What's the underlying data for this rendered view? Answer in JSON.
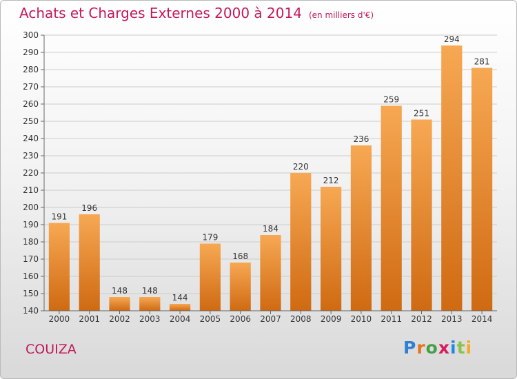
{
  "title": "Achats et Charges Externes 2000 à 2014",
  "unit": "(en milliers d'€)",
  "town": "COUIZA",
  "logo": {
    "letters": [
      "P",
      "r",
      "o",
      "x",
      "i",
      "t",
      "i"
    ],
    "colors": [
      "#2e7fd6",
      "#e8731a",
      "#43a047",
      "#d81b60",
      "#1e88e5",
      "#8bc34a",
      "#f9a825"
    ]
  },
  "colors": {
    "bar_top": "#f7a853",
    "bar_bottom": "#cf6a12",
    "title": "#c2185b",
    "grid": "#cccccc"
  },
  "chart_data": {
    "type": "bar",
    "categories": [
      "2000",
      "2001",
      "2002",
      "2003",
      "2004",
      "2005",
      "2006",
      "2007",
      "2008",
      "2009",
      "2010",
      "2011",
      "2012",
      "2013",
      "2014"
    ],
    "values": [
      191,
      196,
      148,
      148,
      144,
      179,
      168,
      184,
      220,
      212,
      236,
      259,
      251,
      294,
      281
    ],
    "ylim": [
      140,
      300
    ],
    "yticks": [
      140,
      150,
      160,
      170,
      180,
      190,
      200,
      210,
      220,
      230,
      240,
      250,
      260,
      270,
      280,
      290,
      300
    ],
    "grid": true,
    "xlabel": "",
    "ylabel": ""
  }
}
